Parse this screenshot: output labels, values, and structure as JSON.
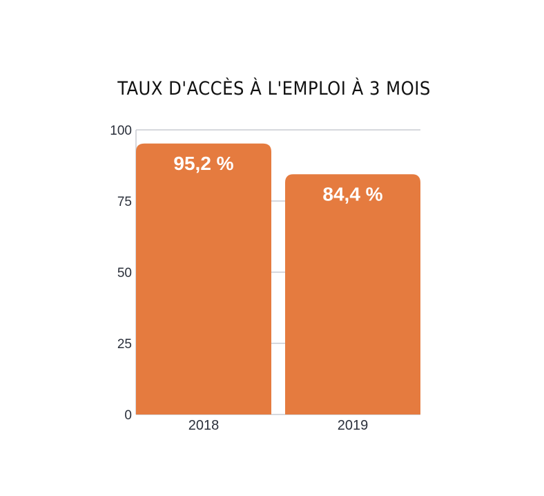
{
  "chart_data": {
    "type": "bar",
    "title": "TAUX D'ACCÈS À L'EMPLOI À 3 MOIS",
    "categories": [
      "2018",
      "2019"
    ],
    "values": [
      95.2,
      84.4
    ],
    "data_labels": [
      "95,2 %",
      "84,4 %"
    ],
    "yticks": [
      0,
      25,
      50,
      75,
      100
    ],
    "ylim": [
      0,
      100
    ],
    "grid": true,
    "bar_color": "#E57B3F",
    "legend": "none"
  }
}
